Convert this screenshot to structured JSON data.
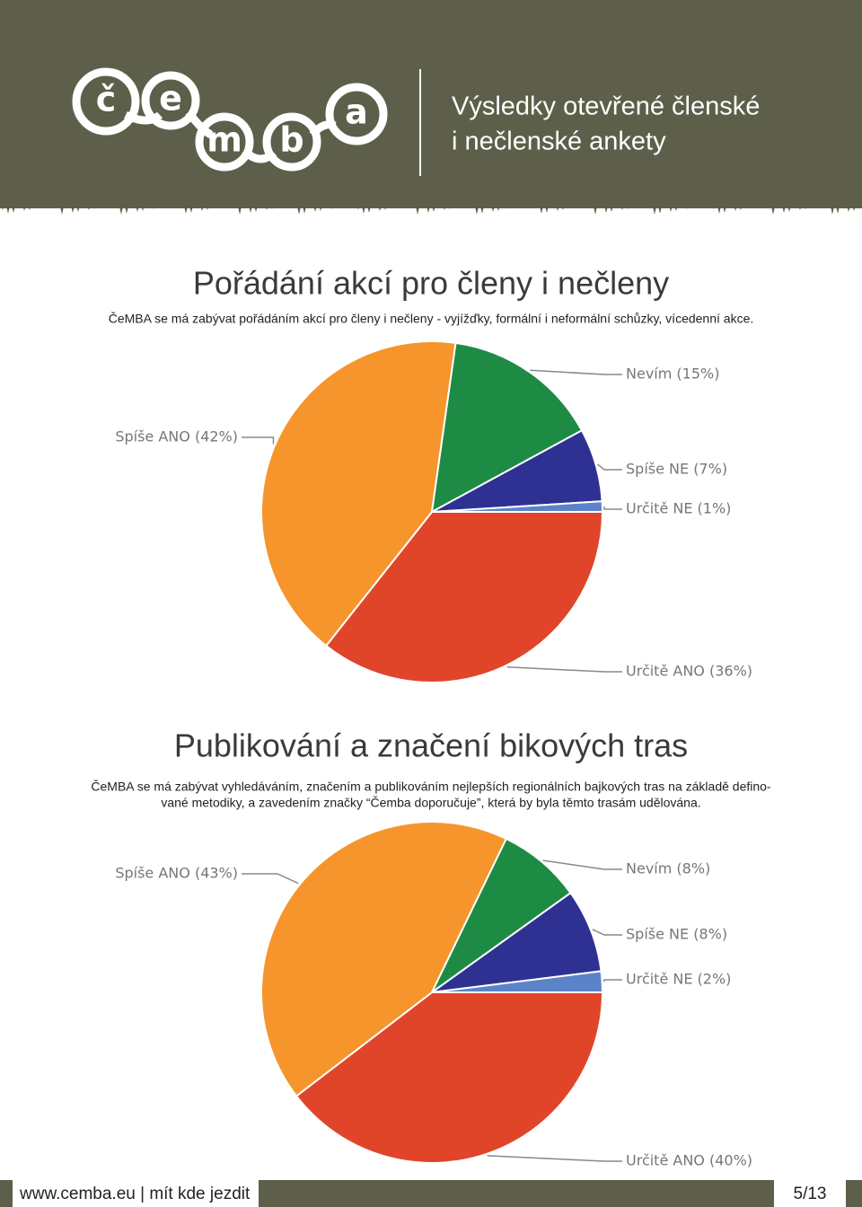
{
  "header": {
    "logo": [
      "č",
      "e",
      "m",
      "b",
      "a"
    ],
    "title": [
      "Výsledky otevřené členské",
      "i nečlenské ankety"
    ]
  },
  "chart_data": [
    {
      "type": "pie",
      "title": "Pořádání akcí pro členy i nečleny",
      "subtitle": [
        "ČeMBA se má zabývat pořádáním akcí pro členy i nečleny - vyjížďky, formální i neformální schůzky, vícedenní akce."
      ],
      "categories": [
        "Určitě ANO (36%)",
        "Spíše ANO (42%)",
        "Nevím (15%)",
        "Spíše NE (7%)",
        "Určitě NE (1%)"
      ],
      "values": [
        36,
        42,
        15,
        7,
        1
      ],
      "colors": [
        "#e0452a",
        "#f6952b",
        "#1e8b45",
        "#2e3192",
        "#5b84c8"
      ]
    },
    {
      "type": "pie",
      "title": "Publikování a značení bikových tras",
      "subtitle": [
        "ČeMBA se má zabývat vyhledáváním, značením a publikováním nejlepších regionálních bajkových tras na základě defino-",
        "vané metodiky, a zavedením značky “Čemba doporučuje”, která by byla těmto trasám udělována."
      ],
      "categories": [
        "Určitě ANO (40%)",
        "Spíše ANO (43%)",
        "Nevím (8%)",
        "Spíše NE (8%)",
        "Určitě NE (2%)"
      ],
      "values": [
        40,
        43,
        8,
        8,
        2
      ],
      "colors": [
        "#e0452a",
        "#f6952b",
        "#1e8b45",
        "#2e3192",
        "#5b84c8"
      ]
    }
  ],
  "footer": {
    "site": "www.cemba.eu | mít kde jezdit",
    "page": "5/13"
  }
}
